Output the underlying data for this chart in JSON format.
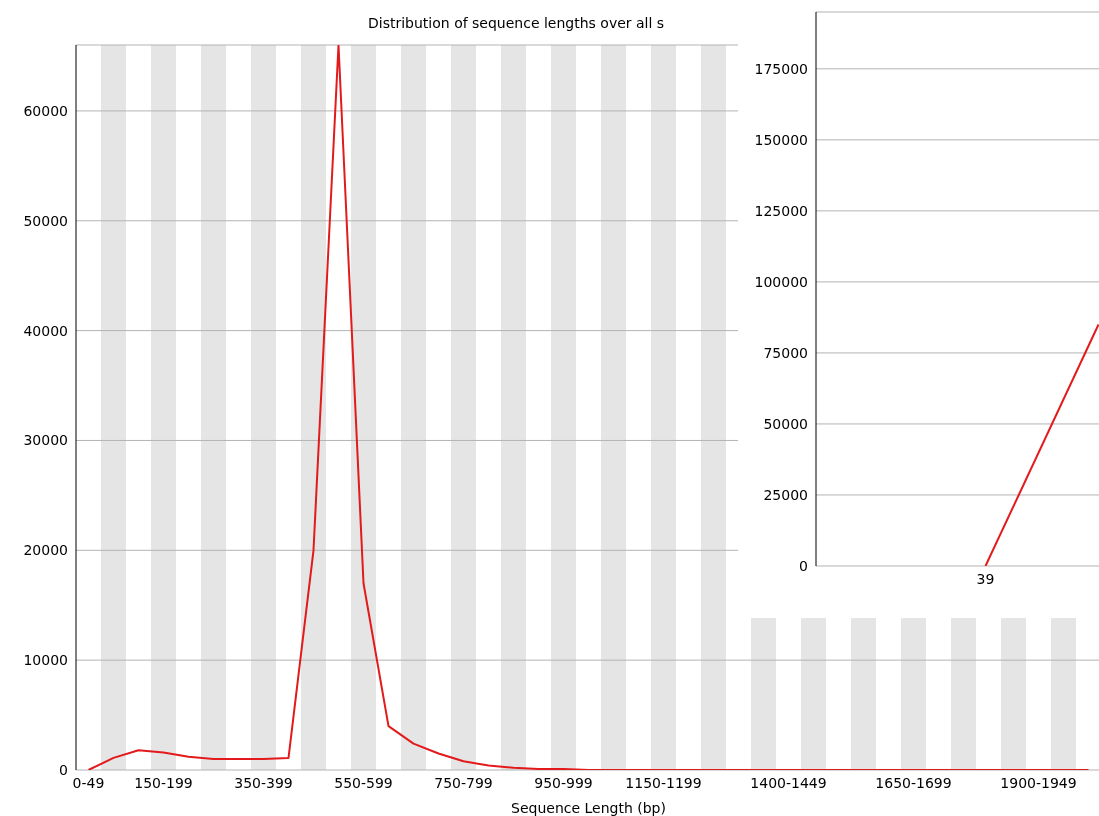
{
  "chart_data": [
    {
      "type": "line",
      "title": "Distribution of sequence lengths over all s",
      "xlabel": "Sequence Length (bp)",
      "categories": [
        "0-49",
        null,
        null,
        "150-199",
        null,
        null,
        null,
        "350-399",
        null,
        null,
        null,
        "550-599",
        null,
        null,
        null,
        "750-799",
        null,
        null,
        null,
        "950-999",
        null,
        null,
        null,
        "1150-1199",
        null,
        null,
        null,
        null,
        "1400-1449",
        null,
        null,
        null,
        null,
        "1650-1699",
        null,
        null,
        null,
        null,
        "1900-1949",
        null,
        null
      ],
      "values": [
        0,
        1100,
        1800,
        1600,
        1200,
        1000,
        1000,
        1000,
        1100,
        20000,
        66000,
        17000,
        4000,
        2400,
        1500,
        800,
        400,
        200,
        100,
        100,
        0,
        0,
        0,
        0,
        0,
        0,
        0,
        0,
        0,
        0,
        0,
        0,
        0,
        0,
        0,
        0,
        0,
        0,
        0,
        0,
        0
      ],
      "color": "#e31a1c",
      "ylim": [
        0,
        66000
      ],
      "yticks": [
        0,
        10000,
        20000,
        30000,
        40000,
        50000,
        60000
      ],
      "grid": "y"
    },
    {
      "type": "line",
      "categories": [
        null,
        "39",
        null
      ],
      "values": [
        null,
        0,
        85000
      ],
      "color": "#e31a1c",
      "ylim": [
        0,
        195000
      ],
      "yticks": [
        0,
        25000,
        50000,
        75000,
        100000,
        125000,
        150000,
        175000
      ],
      "grid": "y"
    }
  ]
}
